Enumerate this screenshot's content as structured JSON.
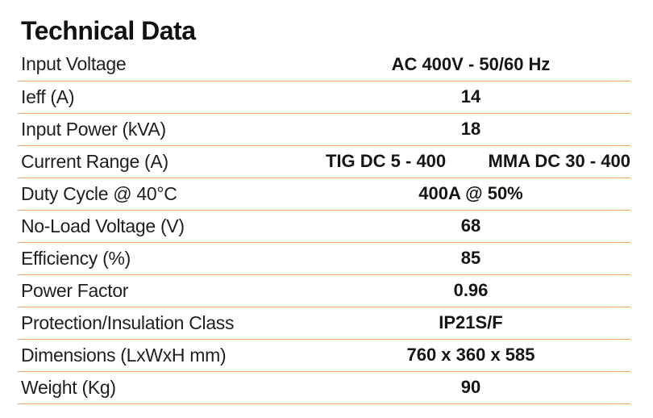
{
  "title": "Technical Data",
  "accent_color": "#f0a561",
  "rows": [
    {
      "label": "Input Voltage",
      "value": "AC 400V - 50/60 Hz"
    },
    {
      "label": "Ieff (A)",
      "value": "14"
    },
    {
      "label": "Input Power (kVA)",
      "value": "18"
    },
    {
      "label": "Current Range (A)",
      "value_left": "TIG DC 5 - 400",
      "value_right": "MMA DC 30 - 400"
    },
    {
      "label": "Duty Cycle @ 40°C",
      "value": "400A @ 50%"
    },
    {
      "label": "No-Load Voltage (V)",
      "value": "68"
    },
    {
      "label": "Efficiency (%)",
      "value": "85"
    },
    {
      "label": "Power Factor",
      "value": "0.96"
    },
    {
      "label": "Protection/Insulation Class",
      "value": "IP21S/F"
    },
    {
      "label": "Dimensions (LxWxH mm)",
      "value": "760 x 360 x 585"
    },
    {
      "label": "Weight (Kg)",
      "value": "90"
    }
  ]
}
